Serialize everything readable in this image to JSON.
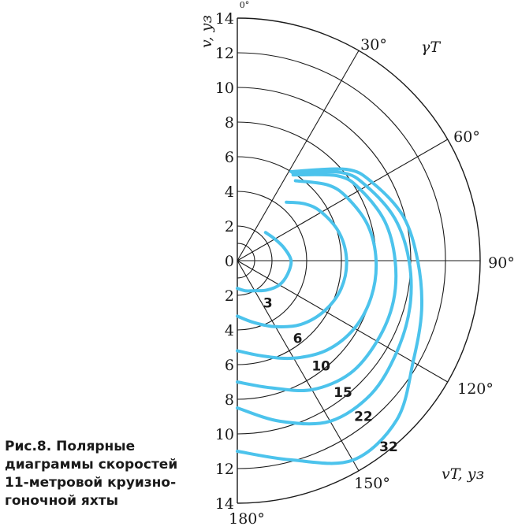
{
  "caption": {
    "line1": "Рис.8. Полярные",
    "line2": "диаграммы скоростей",
    "line3": "11-метровой круизно-",
    "line4": "гоночной яхты"
  },
  "chart_data": {
    "type": "polar",
    "title": "",
    "radial_axis_label": "v, уз",
    "angle_axis_label": "γT",
    "series_axis_label": "vT, уз",
    "radial_ticks": [
      "14",
      "12",
      "10",
      "8",
      "6",
      "4",
      "2",
      "0",
      "2",
      "4",
      "6",
      "8",
      "10",
      "12",
      "14"
    ],
    "angle_ticks": [
      "0°",
      "30°",
      "60°",
      "90°",
      "120°",
      "150°",
      "180°"
    ],
    "rlim": [
      0,
      14
    ],
    "angle_range_deg": [
      0,
      180
    ],
    "grid": true,
    "series_color": "#4cc3ec",
    "series": [
      {
        "name": "3",
        "points": [
          [
            45,
            2.3
          ],
          [
            60,
            2.5
          ],
          [
            75,
            2.8
          ],
          [
            90,
            3.1
          ],
          [
            105,
            3.0
          ],
          [
            120,
            2.8
          ],
          [
            135,
            2.4
          ],
          [
            150,
            2.0
          ],
          [
            165,
            1.8
          ],
          [
            180,
            1.6
          ]
        ]
      },
      {
        "name": "6",
        "points": [
          [
            40,
            4.4
          ],
          [
            50,
            5.1
          ],
          [
            60,
            5.6
          ],
          [
            75,
            6.1
          ],
          [
            90,
            6.3
          ],
          [
            105,
            6.2
          ],
          [
            120,
            5.8
          ],
          [
            135,
            5.2
          ],
          [
            150,
            4.4
          ],
          [
            165,
            3.7
          ],
          [
            180,
            3.2
          ]
        ]
      },
      {
        "name": "10",
        "points": [
          [
            36,
            5.7
          ],
          [
            50,
            6.8
          ],
          [
            60,
            7.3
          ],
          [
            75,
            7.8
          ],
          [
            90,
            8.0
          ],
          [
            105,
            8.0
          ],
          [
            120,
            7.8
          ],
          [
            135,
            7.3
          ],
          [
            150,
            6.5
          ],
          [
            165,
            5.7
          ],
          [
            180,
            5.2
          ]
        ]
      },
      {
        "name": "15",
        "points": [
          [
            33,
            5.9
          ],
          [
            50,
            7.6
          ],
          [
            60,
            8.2
          ],
          [
            75,
            8.8
          ],
          [
            90,
            9.1
          ],
          [
            105,
            9.3
          ],
          [
            120,
            9.3
          ],
          [
            135,
            9.2
          ],
          [
            150,
            8.6
          ],
          [
            165,
            7.6
          ],
          [
            180,
            7.0
          ]
        ]
      },
      {
        "name": "22",
        "points": [
          [
            32,
            6.0
          ],
          [
            50,
            7.9
          ],
          [
            60,
            8.6
          ],
          [
            75,
            9.4
          ],
          [
            90,
            9.9
          ],
          [
            105,
            10.3
          ],
          [
            120,
            10.6
          ],
          [
            135,
            10.9
          ],
          [
            150,
            10.7
          ],
          [
            165,
            9.6
          ],
          [
            180,
            8.5
          ]
        ]
      },
      {
        "name": "32",
        "points": [
          [
            31,
            6.0
          ],
          [
            50,
            8.2
          ],
          [
            60,
            9.0
          ],
          [
            75,
            9.9
          ],
          [
            90,
            10.4
          ],
          [
            105,
            11.0
          ],
          [
            120,
            11.7
          ],
          [
            135,
            13.0
          ],
          [
            150,
            13.3
          ],
          [
            165,
            11.9
          ],
          [
            180,
            11.0
          ]
        ]
      }
    ]
  }
}
